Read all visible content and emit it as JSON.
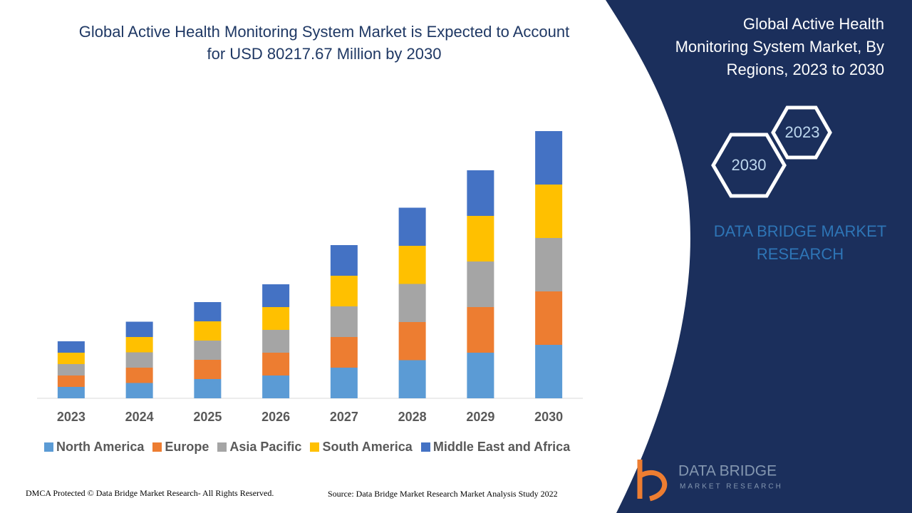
{
  "chart_data": {
    "type": "stacked-bar",
    "title": [
      "Global Active Health Monitoring System Market is Expected to Account",
      "for USD 80217.67 Million by 2030"
    ],
    "categories": [
      "2023",
      "2024",
      "2025",
      "2026",
      "2027",
      "2028",
      "2029",
      "2030"
    ],
    "series": [
      {
        "name": "North America",
        "color": "#5b9bd5",
        "values": [
          3.2,
          4.3,
          5.4,
          6.4,
          8.6,
          10.7,
          12.8,
          15.0
        ]
      },
      {
        "name": "Europe",
        "color": "#ed7d31",
        "values": [
          3.2,
          4.3,
          5.4,
          6.4,
          8.6,
          10.7,
          12.8,
          15.0
        ]
      },
      {
        "name": "Asia Pacific",
        "color": "#a5a5a5",
        "values": [
          3.2,
          4.3,
          5.4,
          6.4,
          8.6,
          10.7,
          12.8,
          15.0
        ]
      },
      {
        "name": "South America",
        "color": "#ffc000",
        "values": [
          3.2,
          4.3,
          5.4,
          6.4,
          8.6,
          10.7,
          12.8,
          15.0
        ]
      },
      {
        "name": "Middle East and Africa",
        "color": "#4472c4",
        "values": [
          3.2,
          4.3,
          5.4,
          6.4,
          8.6,
          10.7,
          12.8,
          15.0
        ]
      }
    ],
    "ylim": [
      0,
      80
    ]
  },
  "panel": {
    "title": [
      "Global Active Health",
      "Monitoring System Market, By",
      "Regions, 2023 to 2030"
    ],
    "hex_labels": [
      "2023",
      "2030"
    ],
    "brand": [
      "DATA BRIDGE MARKET",
      "RESEARCH"
    ]
  },
  "footer": {
    "copyright": "DMCA Protected © Data Bridge Market Research- All Rights Reserved.",
    "source": "Source: Data Bridge Market Research Market Analysis Study 2022"
  },
  "logo": {
    "name": "DATA BRIDGE",
    "tagline": "MARKET RESEARCH"
  }
}
